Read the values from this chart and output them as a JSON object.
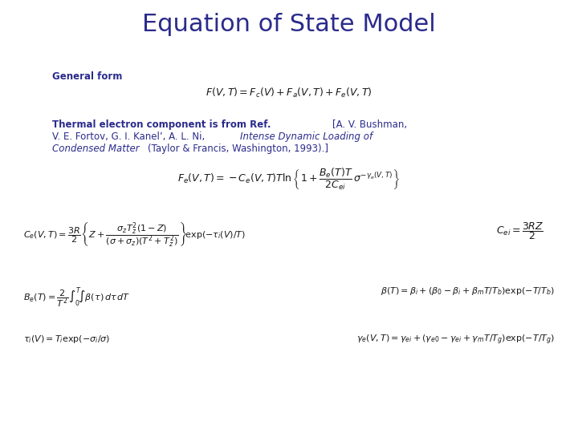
{
  "title": "Equation of State Model",
  "title_color": "#2B2B8C",
  "title_fontsize": 22,
  "bg_color": "#ffffff",
  "text_color": "#2B2B8C",
  "body_color": "#1a1a1a",
  "general_form_label": "General form",
  "eq1": "$F(V,T) = F_c(V) + F_a(V,T) + F_e(V,T)$",
  "eq2": "$F_e(V,T) = -C_e(V,T)T\\ln\\left\\{1 + \\dfrac{B_e(T)T}{2C_{ei}}\\,\\sigma^{-\\gamma_e(V,T)}\\right\\}$",
  "eq3": "$C_e(V,T) = \\dfrac{3R}{2}\\left\\{Z + \\dfrac{\\sigma_z T_z^2(1-Z)}{(\\sigma+\\sigma_z)(T^2+T_z^2)}\\right\\}\\!\\exp(-\\tau_i(V)/T)$",
  "eq3r": "$C_{ei} = \\dfrac{3RZ}{2}$",
  "eq4": "$B_e(T) = \\dfrac{2}{T^2}\\int_0^T\\!\\int\\beta(\\tau)\\,d\\tau\\,dT$",
  "eq4r": "$\\beta(T) = \\beta_i + (\\beta_0 - \\beta_i + \\beta_m T/T_b)\\exp(-T/T_b)$",
  "eq5": "$\\tau_i(V) = T_i\\exp(-\\sigma_i/\\sigma)$",
  "eq5r": "$\\gamma_e(V,T) = \\gamma_{ei} + (\\gamma_{e0} - \\gamma_{ei} + \\gamma_m T/T_g)\\exp(-T/T_g)$",
  "label_fontsize": 8.5,
  "eq_fontsize": 9,
  "eq_small_fontsize": 8,
  "ref_fontsize": 8.5
}
